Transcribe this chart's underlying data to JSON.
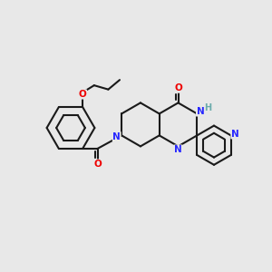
{
  "bg_color": "#e8e8e8",
  "bond_color": "#1a1a1a",
  "N_color": "#2828ff",
  "O_color": "#ee0000",
  "H_color": "#6aabab",
  "lw": 1.5,
  "fs": 7.5,
  "xlim": [
    0,
    10
  ],
  "ylim": [
    0,
    10
  ],
  "figsize": [
    3.0,
    3.0
  ],
  "dpi": 100
}
